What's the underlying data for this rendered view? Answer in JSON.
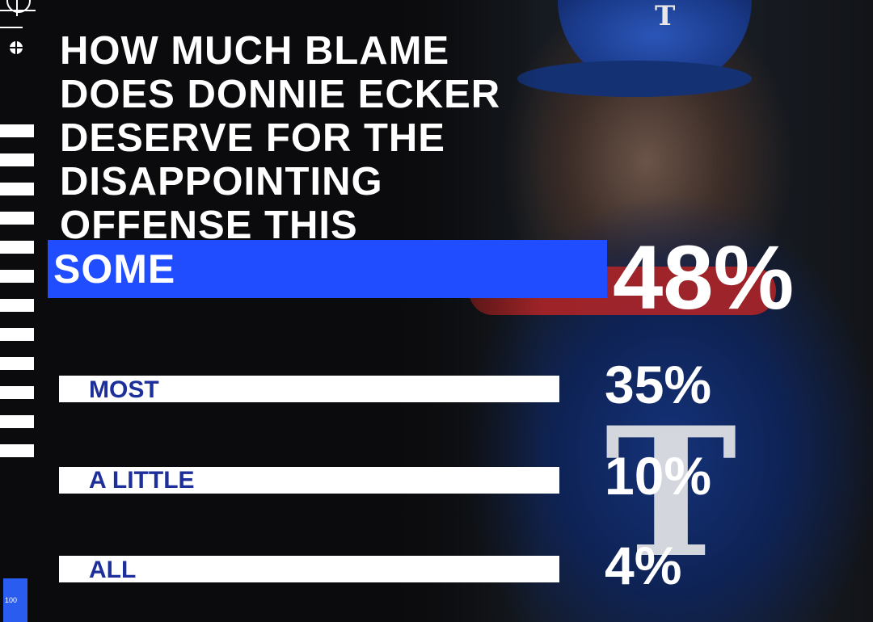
{
  "poll": {
    "question": "HOW MUCH BLAME DOES DONNIE ECKER DESERVE FOR THE DISAPPOINTING OFFENSE THIS SEASON?",
    "options": [
      {
        "label": "SOME",
        "percent": "48%",
        "highlighted": true
      },
      {
        "label": "MOST",
        "percent": "35%"
      },
      {
        "label": "A LITTLE",
        "percent": "10%"
      },
      {
        "label": "ALL",
        "percent": "4%"
      }
    ]
  },
  "decor": {
    "corner_tag": "100",
    "cap_logo": "T",
    "jersey_logo": "T"
  },
  "colors": {
    "accent_blue": "#1f4dff",
    "label_blue": "#1d2f9a",
    "bar_white": "#ffffff",
    "background": "#0b0b0d"
  },
  "chart_data": {
    "type": "bar",
    "title": "HOW MUCH BLAME DOES DONNIE ECKER DESERVE FOR THE DISAPPOINTING OFFENSE THIS SEASON?",
    "categories": [
      "SOME",
      "MOST",
      "A LITTLE",
      "ALL"
    ],
    "values": [
      48,
      35,
      10,
      4
    ],
    "xlabel": "",
    "ylabel": "",
    "ylim": [
      0,
      100
    ],
    "grid": false,
    "orientation": "horizontal"
  }
}
